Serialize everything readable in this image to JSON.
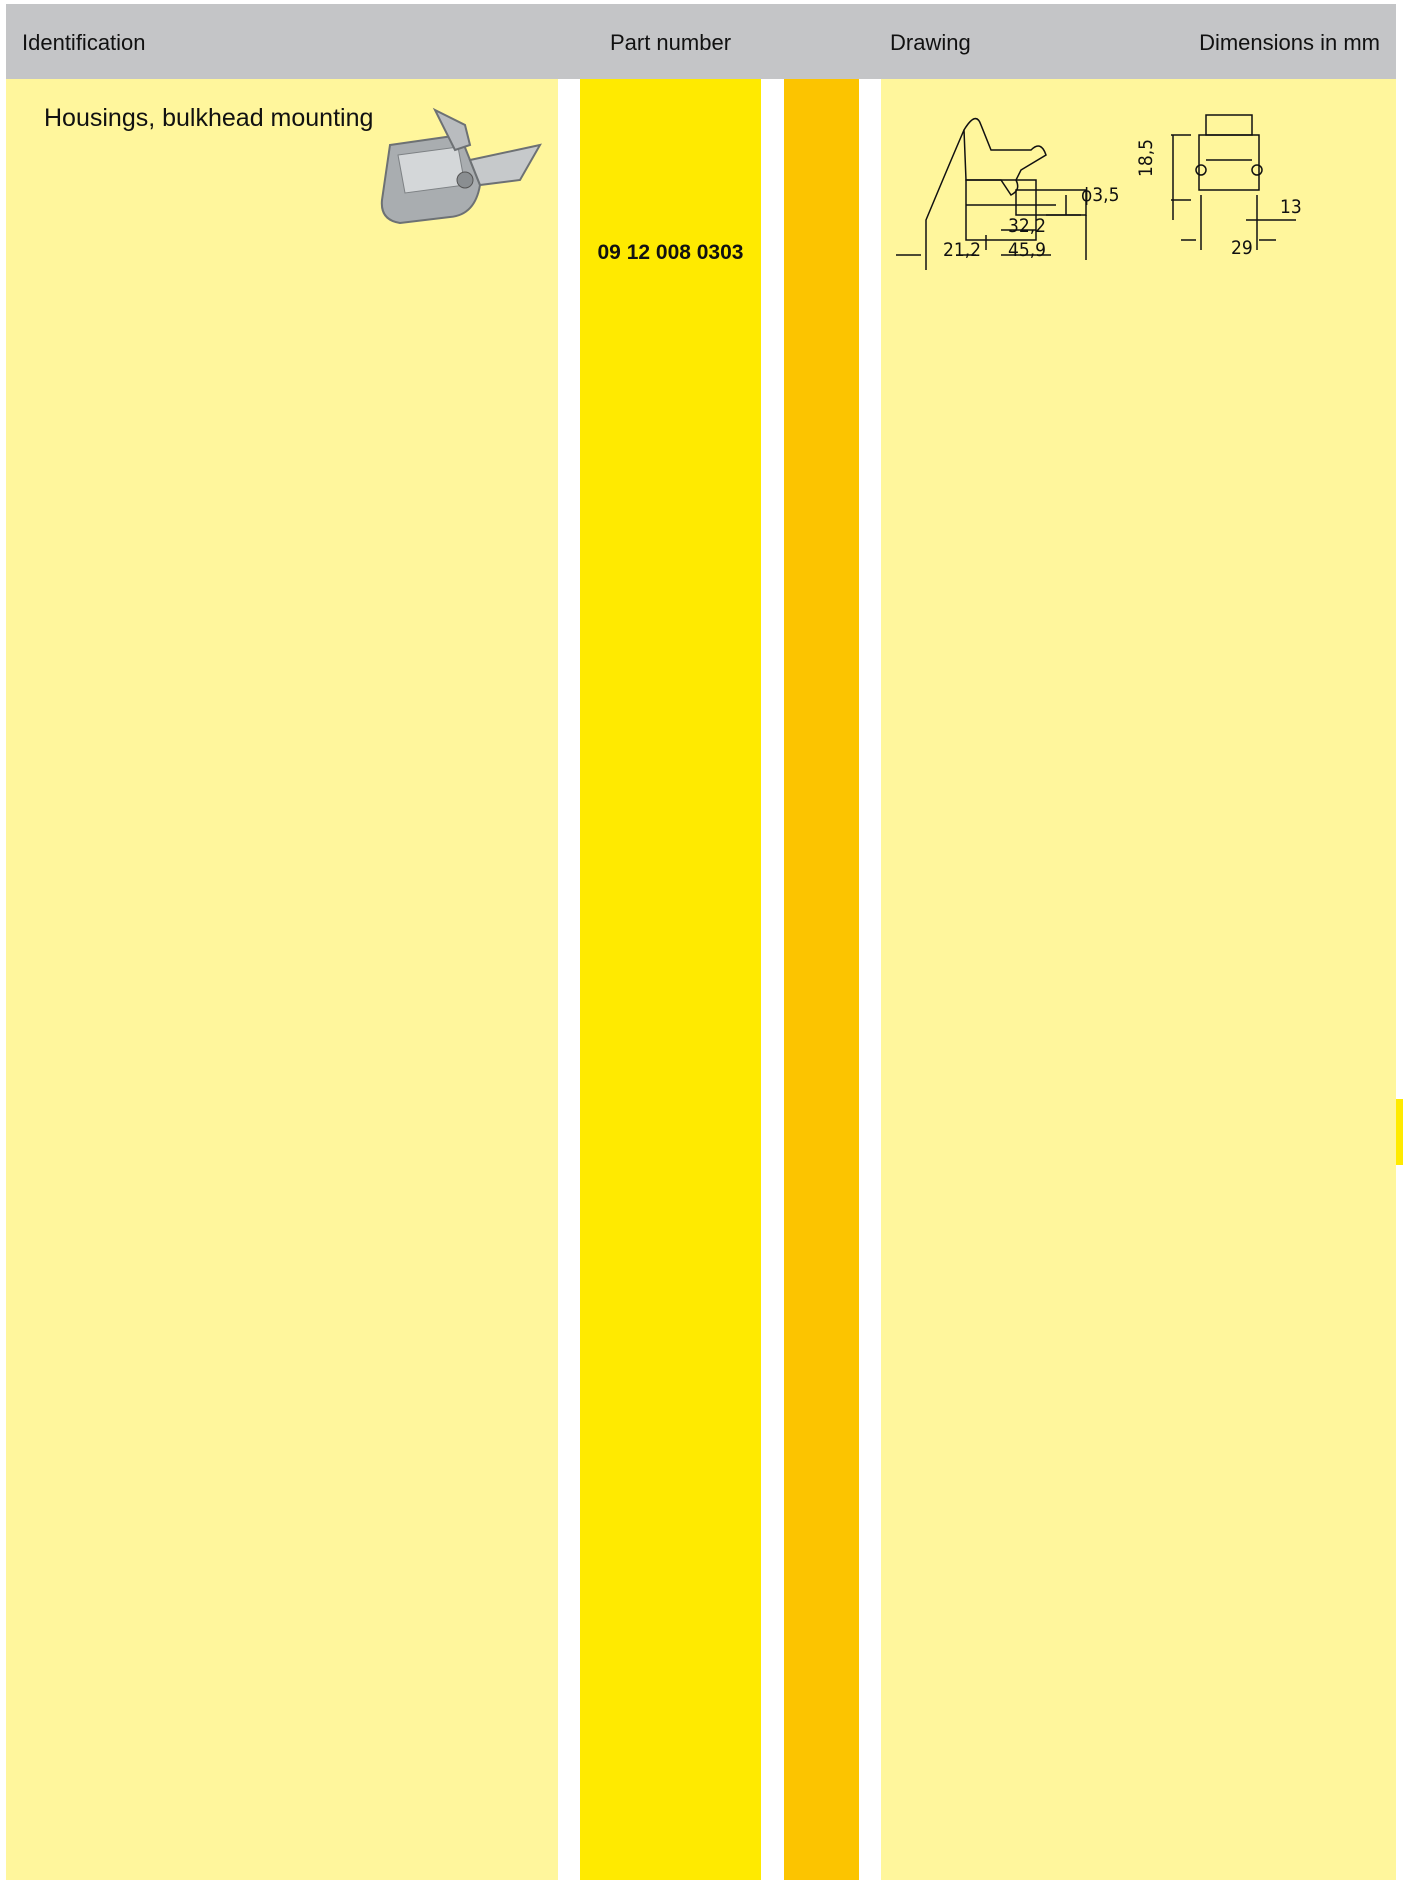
{
  "header": {
    "columns": [
      "Identification",
      "Part number",
      "Drawing",
      "Dimensions in mm"
    ]
  },
  "rows": [
    {
      "identification": "Housings, bulkhead mounting",
      "part_number": "09 12 008 0303",
      "dimensions": [
        "ϕ3,5",
        "32,2",
        "21,2",
        "45,9",
        "18,5",
        "13,4",
        "29"
      ]
    }
  ]
}
